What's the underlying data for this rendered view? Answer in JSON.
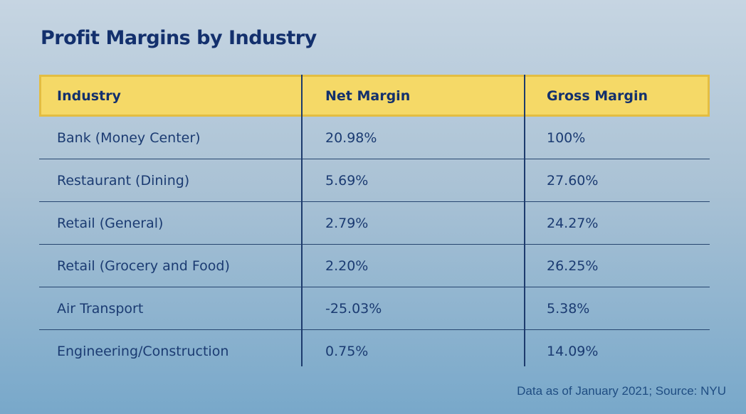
{
  "title": "Profit Margins by Industry",
  "source_note": "Data as of January 2021; Source: NYU",
  "colors": {
    "header_fill": "#f5d967",
    "header_border": "#e3bd42",
    "navy_text": "#13306d",
    "body_text": "#1b3b72",
    "divider_line": "#1d3b6d",
    "background_top": "#c6d5e2",
    "background_bottom": "#78a8ca"
  },
  "chart_data": {
    "type": "table",
    "title": "Profit Margins by Industry",
    "columns": [
      "Industry",
      "Net Margin",
      "Gross Margin"
    ],
    "rows": [
      [
        "Bank (Money Center)",
        "20.98%",
        "100%"
      ],
      [
        "Restaurant (Dining)",
        "5.69%",
        "27.60%"
      ],
      [
        "Retail (General)",
        "2.79%",
        "24.27%"
      ],
      [
        "Retail (Grocery and Food)",
        "2.20%",
        "26.25%"
      ],
      [
        "Air Transport",
        "-25.03%",
        "5.38%"
      ],
      [
        "Engineering/Construction",
        "0.75%",
        "14.09%"
      ]
    ],
    "net_margin_values": [
      20.98,
      5.69,
      2.79,
      2.2,
      -25.03,
      0.75
    ],
    "gross_margin_values": [
      100,
      27.6,
      24.27,
      26.25,
      5.38,
      14.09
    ]
  }
}
